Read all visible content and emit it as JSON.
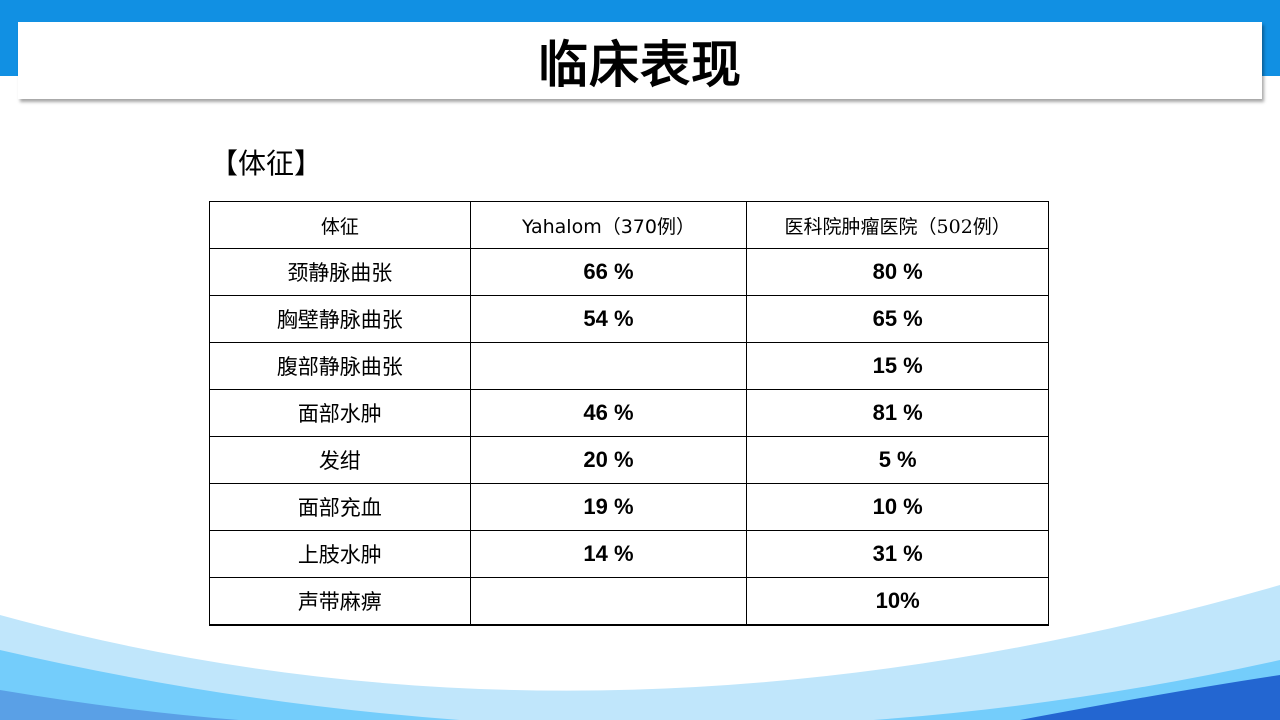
{
  "title": "临床表现",
  "subheading": "【体征】",
  "table": {
    "headers": [
      "体征",
      "Yahalom（370例）",
      "医科院肿瘤医院（502例）"
    ],
    "rows": [
      [
        "颈静脉曲张",
        "66 %",
        "80 %"
      ],
      [
        "胸壁静脉曲张",
        "54 %",
        "65 %"
      ],
      [
        "腹部静脉曲张",
        "",
        "15 %"
      ],
      [
        "面部水肿",
        "46 %",
        "81 %"
      ],
      [
        "发绀",
        "20 %",
        "5 %"
      ],
      [
        "面部充血",
        "19 %",
        "10 %"
      ],
      [
        "上肢水肿",
        "14 %",
        "31 %"
      ],
      [
        "声带麻痹",
        "",
        "10%"
      ]
    ]
  },
  "colors": {
    "top_band": "#1190e3",
    "wave_light": "#c0e6fb",
    "wave_mid": "#74cdfb",
    "wave_dark": "#2366d1"
  }
}
